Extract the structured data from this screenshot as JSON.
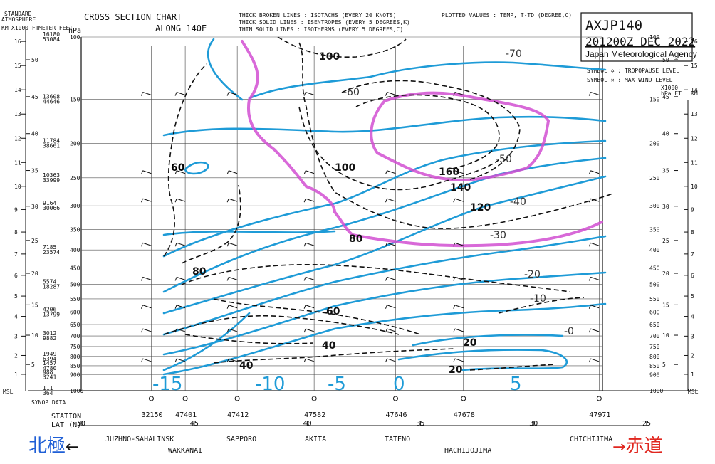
{
  "chart_data": {
    "type": "line",
    "title": "CROSS SECTION CHART",
    "subtitle": "ALONG 140E",
    "chart_id": "AXJP140",
    "valid_time": "201200Z DEC 2022",
    "agency": "Japan Meteorological Agency",
    "legend_lines": [
      "THICK BROKEN LINES : ISOTACHS   (EVERY 20 KNOTS)",
      "THICK SOLID  LINES : ISENTROPES (EVERY  5 DEGREES,K)",
      "THIN  SOLID  LINES : ISOTHERMS  (EVERY  5 DEGREES,C)"
    ],
    "plotted_values": "PLOTTED VALUES : TEMP, T-TD (DEGREE,C)",
    "symbol_tropopause": "SYMBOL ✡ : TROPOPAUSE LEVEL",
    "symbol_maxwind": "SYMBOL ✕ : MAX WIND   LEVEL",
    "left_axis_header": [
      "STANDARD",
      "ATMOSPHERE"
    ],
    "km_label": "KM",
    "x1000ft_label": "X1000 FT",
    "meter_feet_label": "METER FEET",
    "hpa_label": "hPa",
    "right_axis_header": [
      "X1000",
      "hPa FT",
      "KM"
    ],
    "pressure_levels": [
      100,
      150,
      200,
      250,
      300,
      350,
      400,
      450,
      500,
      550,
      600,
      650,
      700,
      750,
      800,
      850,
      900,
      1000
    ],
    "height_pairs": [
      {
        "p": 100,
        "m": "16180",
        "ft": "53084"
      },
      {
        "p": 150,
        "m": "13608",
        "ft": "44646"
      },
      {
        "p": 200,
        "m": "11784",
        "ft": "38661"
      },
      {
        "p": 250,
        "m": "10363",
        "ft": "33999"
      },
      {
        "p": 300,
        "m": "9164",
        "ft": "30066"
      },
      {
        "p": 400,
        "m": "7185",
        "ft": "23574"
      },
      {
        "p": 500,
        "m": "5574",
        "ft": "18287"
      },
      {
        "p": 600,
        "m": "4206",
        "ft": "13799"
      },
      {
        "p": 700,
        "m": "3012",
        "ft": "9882"
      },
      {
        "p": 800,
        "m": "1949",
        "ft": "6394"
      },
      {
        "p": 850,
        "m": "1457",
        "ft": "4780"
      },
      {
        "p": 900,
        "m": "988",
        "ft": "3241"
      },
      {
        "p": 1000,
        "m": "111",
        "ft": "364"
      }
    ],
    "km_ticks": [
      1,
      2,
      3,
      4,
      5,
      6,
      7,
      8,
      9,
      10,
      11,
      12,
      13,
      14,
      15,
      16
    ],
    "ft_ticks": [
      5,
      10,
      15,
      20,
      25,
      30,
      35,
      40,
      45,
      50
    ],
    "msl_label": "MSL",
    "synop_label": "SYNOP DATA",
    "station_label": "STATION",
    "lat_label": "LAT (N)",
    "stations": [
      {
        "id": "32150",
        "lat": 46.9
      },
      {
        "id": "47401",
        "lat": 45.4
      },
      {
        "id": "47412",
        "lat": 43.1
      },
      {
        "id": "47582",
        "lat": 39.7
      },
      {
        "id": "47646",
        "lat": 36.1
      },
      {
        "id": "47678",
        "lat": 33.1
      },
      {
        "id": "47971",
        "lat": 27.1
      }
    ],
    "lat_ticks": [
      50,
      45,
      40,
      35,
      30,
      25
    ],
    "place_names_top": [
      "JUZHNO-SAHALINSK",
      "SAPPORO",
      "AKITA",
      "TATENO",
      "CHICHIJIMA"
    ],
    "place_names_bottom": [
      "WAKKANAI",
      "HACHIJOJIMA"
    ],
    "footer_left": "北極",
    "footer_right": "赤道",
    "footer_left_arrow": "←",
    "footer_right_arrow": "→",
    "temperature_labels": [
      "-70",
      "-60",
      "-50",
      "-40",
      "-30",
      "-20",
      "-10",
      "-0"
    ],
    "isotach_labels": [
      "100",
      "100",
      "120",
      "140",
      "160",
      "80",
      "80",
      "60",
      "40",
      "40",
      "20",
      "20"
    ],
    "isentrope_labels": [
      "-15",
      "-10",
      "-5",
      "0",
      "5"
    ],
    "tropopause_wind_label": "60",
    "isotach_color": "#111111",
    "isentrope_color": "#1e9bd7",
    "jet_core_color": "#d24fd2"
  }
}
